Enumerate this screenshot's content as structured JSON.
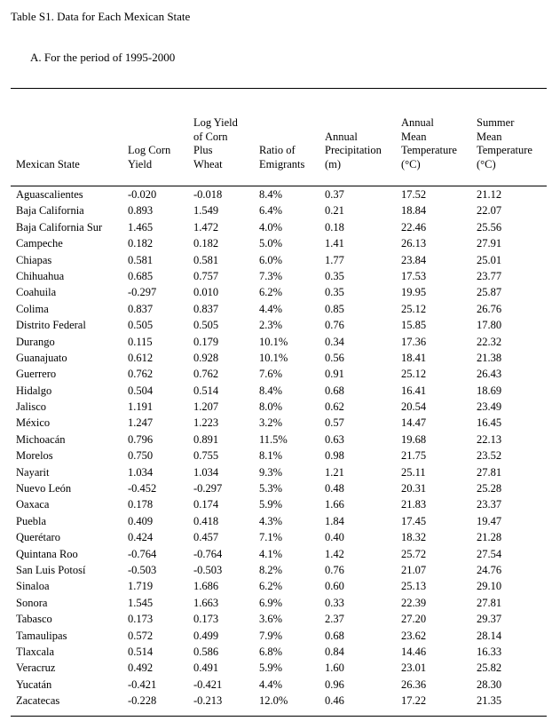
{
  "document": {
    "title": "Table S1. Data for Each Mexican State",
    "section": "A.  For the period of 1995-2000"
  },
  "table": {
    "headers": [
      "Mexican State",
      "Log Corn\nYield",
      "Log Yield\nof Corn\nPlus\nWheat",
      "Ratio of\nEmigrants",
      "Annual\nPrecipitation\n(m)",
      "Annual\nMean\nTemperature\n(°C)",
      "Summer\nMean\nTemperature\n(°C)"
    ],
    "rows": [
      [
        "Aguascalientes",
        "-0.020",
        "-0.018",
        "8.4%",
        "0.37",
        "17.52",
        "21.12"
      ],
      [
        "Baja California",
        "0.893",
        "1.549",
        "6.4%",
        "0.21",
        "18.84",
        "22.07"
      ],
      [
        "Baja California Sur",
        "1.465",
        "1.472",
        "4.0%",
        "0.18",
        "22.46",
        "25.56"
      ],
      [
        "Campeche",
        "0.182",
        "0.182",
        "5.0%",
        "1.41",
        "26.13",
        "27.91"
      ],
      [
        "Chiapas",
        "0.581",
        "0.581",
        "6.0%",
        "1.77",
        "23.84",
        "25.01"
      ],
      [
        "Chihuahua",
        "0.685",
        "0.757",
        "7.3%",
        "0.35",
        "17.53",
        "23.77"
      ],
      [
        "Coahuila",
        "-0.297",
        "0.010",
        "6.2%",
        "0.35",
        "19.95",
        "25.87"
      ],
      [
        "Colima",
        "0.837",
        "0.837",
        "4.4%",
        "0.85",
        "25.12",
        "26.76"
      ],
      [
        "Distrito Federal",
        "0.505",
        "0.505",
        "2.3%",
        "0.76",
        "15.85",
        "17.80"
      ],
      [
        "Durango",
        "0.115",
        "0.179",
        "10.1%",
        "0.34",
        "17.36",
        "22.32"
      ],
      [
        "Guanajuato",
        "0.612",
        "0.928",
        "10.1%",
        "0.56",
        "18.41",
        "21.38"
      ],
      [
        "Guerrero",
        "0.762",
        "0.762",
        "7.6%",
        "0.91",
        "25.12",
        "26.43"
      ],
      [
        "Hidalgo",
        "0.504",
        "0.514",
        "8.4%",
        "0.68",
        "16.41",
        "18.69"
      ],
      [
        "Jalisco",
        "1.191",
        "1.207",
        "8.0%",
        "0.62",
        "20.54",
        "23.49"
      ],
      [
        "México",
        "1.247",
        "1.223",
        "3.2%",
        "0.57",
        "14.47",
        "16.45"
      ],
      [
        "Michoacán",
        "0.796",
        "0.891",
        "11.5%",
        "0.63",
        "19.68",
        "22.13"
      ],
      [
        "Morelos",
        "0.750",
        "0.755",
        "8.1%",
        "0.98",
        "21.75",
        "23.52"
      ],
      [
        "Nayarit",
        "1.034",
        "1.034",
        "9.3%",
        "1.21",
        "25.11",
        "27.81"
      ],
      [
        "Nuevo León",
        "-0.452",
        "-0.297",
        "5.3%",
        "0.48",
        "20.31",
        "25.28"
      ],
      [
        "Oaxaca",
        "0.178",
        "0.174",
        "5.9%",
        "1.66",
        "21.83",
        "23.37"
      ],
      [
        "Puebla",
        "0.409",
        "0.418",
        "4.3%",
        "1.84",
        "17.45",
        "19.47"
      ],
      [
        "Querétaro",
        "0.424",
        "0.457",
        "7.1%",
        "0.40",
        "18.32",
        "21.28"
      ],
      [
        "Quintana Roo",
        "-0.764",
        "-0.764",
        "4.1%",
        "1.42",
        "25.72",
        "27.54"
      ],
      [
        "San Luis Potosí",
        "-0.503",
        "-0.503",
        "8.2%",
        "0.76",
        "21.07",
        "24.76"
      ],
      [
        "Sinaloa",
        "1.719",
        "1.686",
        "6.2%",
        "0.60",
        "25.13",
        "29.10"
      ],
      [
        "Sonora",
        "1.545",
        "1.663",
        "6.9%",
        "0.33",
        "22.39",
        "27.81"
      ],
      [
        "Tabasco",
        "0.173",
        "0.173",
        "3.6%",
        "2.37",
        "27.20",
        "29.37"
      ],
      [
        "Tamaulipas",
        "0.572",
        "0.499",
        "7.9%",
        "0.68",
        "23.62",
        "28.14"
      ],
      [
        "Tlaxcala",
        "0.514",
        "0.586",
        "6.8%",
        "0.84",
        "14.46",
        "16.33"
      ],
      [
        "Veracruz",
        "0.492",
        "0.491",
        "5.9%",
        "1.60",
        "23.01",
        "25.82"
      ],
      [
        "Yucatán",
        "-0.421",
        "-0.421",
        "4.4%",
        "0.96",
        "26.36",
        "28.30"
      ],
      [
        "Zacatecas",
        "-0.228",
        "-0.213",
        "12.0%",
        "0.46",
        "17.22",
        "21.35"
      ]
    ]
  }
}
